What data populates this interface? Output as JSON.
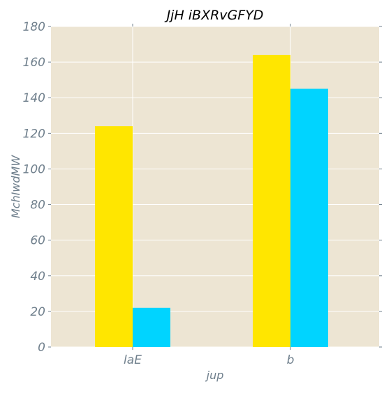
{
  "colors": {
    "plot_background": "#ede5d3",
    "grid": "#ffffff",
    "tick_text": "#6f7f8c",
    "title_text": "#000000",
    "series": [
      "#ffe600",
      "#00d4ff"
    ]
  },
  "chart_data": {
    "type": "bar",
    "title": "JjH iBXRvGFYD",
    "xlabel": "jup",
    "ylabel": "MchIwdMW",
    "categories": [
      "laE",
      "b"
    ],
    "series": [
      {
        "values": [
          124,
          164
        ]
      },
      {
        "values": [
          22,
          145
        ]
      }
    ],
    "ylim": [
      0,
      180
    ],
    "yticks": [
      0,
      20,
      40,
      60,
      80,
      100,
      120,
      140,
      160,
      180
    ],
    "ytick_labels": [
      "0",
      "20",
      "40",
      "60",
      "80",
      "100",
      "120",
      "140",
      "160",
      "180"
    ],
    "grid": true,
    "legend": "none"
  }
}
